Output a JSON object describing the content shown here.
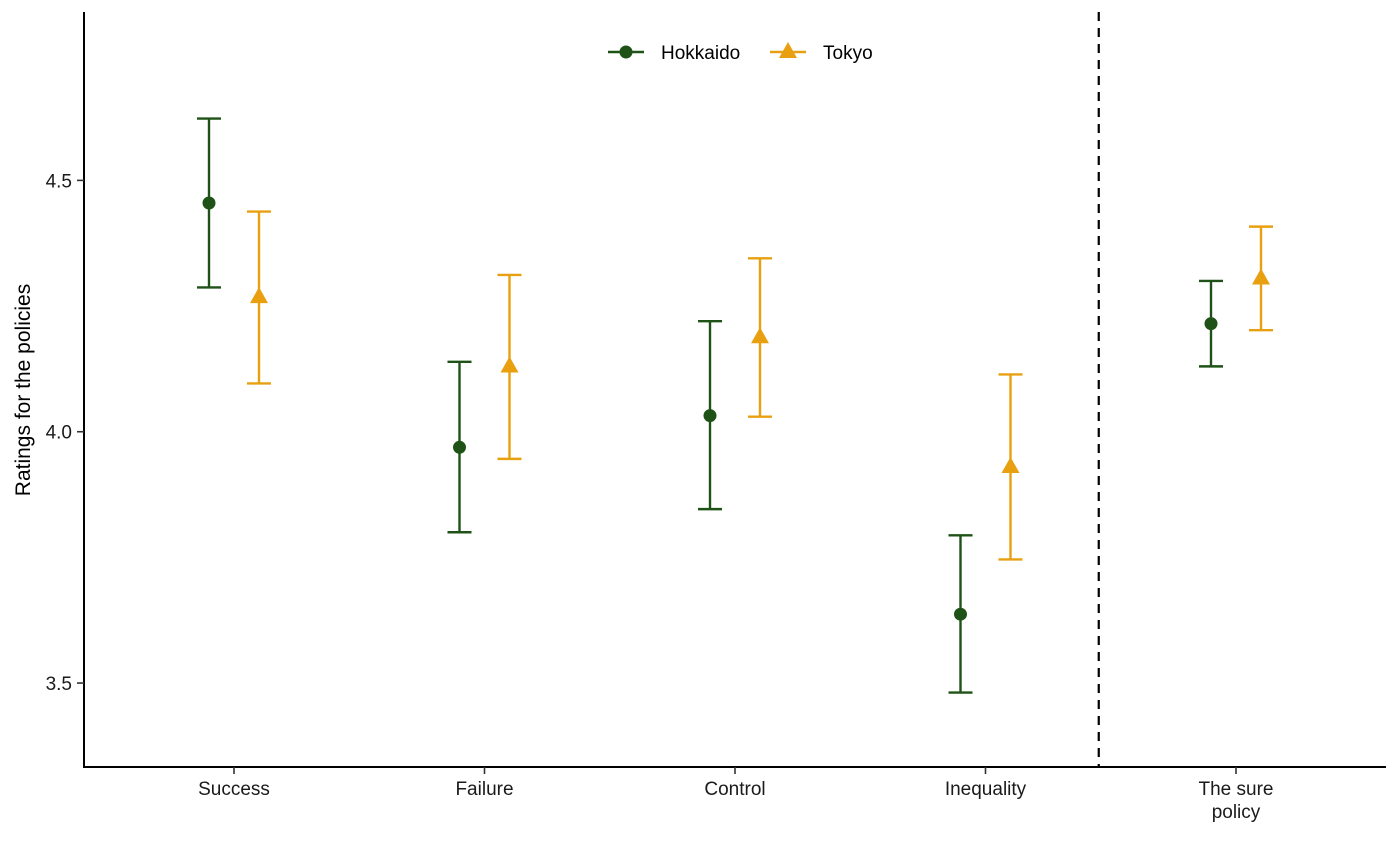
{
  "chart_data": {
    "type": "scatter",
    "title": "",
    "xlabel": "",
    "ylabel": "Ratings for the policies",
    "ylim": [
      3.333,
      4.835
    ],
    "yticks": [
      3.5,
      4.0,
      4.5
    ],
    "ytick_labels": [
      "3.5",
      "4.0",
      "4.5"
    ],
    "grid": false,
    "legend_position": "top-center",
    "categories": [
      [
        "Success"
      ],
      [
        "Failure"
      ],
      [
        "Control"
      ],
      [
        "Inequality"
      ],
      [
        "The sure",
        "policy"
      ]
    ],
    "divider_after_category": 3,
    "series": [
      {
        "name": "Hokkaido",
        "color": "#1f5216",
        "marker": "circle",
        "points": [
          {
            "value": 4.455,
            "lower": 4.287,
            "upper": 4.623
          },
          {
            "value": 3.969,
            "lower": 3.8,
            "upper": 4.139
          },
          {
            "value": 4.032,
            "lower": 3.846,
            "upper": 4.22
          },
          {
            "value": 3.637,
            "lower": 3.481,
            "upper": 3.794
          },
          {
            "value": 4.215,
            "lower": 4.13,
            "upper": 4.3
          }
        ]
      },
      {
        "name": "Tokyo",
        "color": "#e8a010",
        "marker": "triangle",
        "points": [
          {
            "value": 4.268,
            "lower": 4.096,
            "upper": 4.438
          },
          {
            "value": 4.13,
            "lower": 3.946,
            "upper": 4.312
          },
          {
            "value": 4.188,
            "lower": 4.03,
            "upper": 4.345
          },
          {
            "value": 3.93,
            "lower": 3.746,
            "upper": 4.114
          },
          {
            "value": 4.305,
            "lower": 4.202,
            "upper": 4.408
          }
        ]
      }
    ]
  }
}
